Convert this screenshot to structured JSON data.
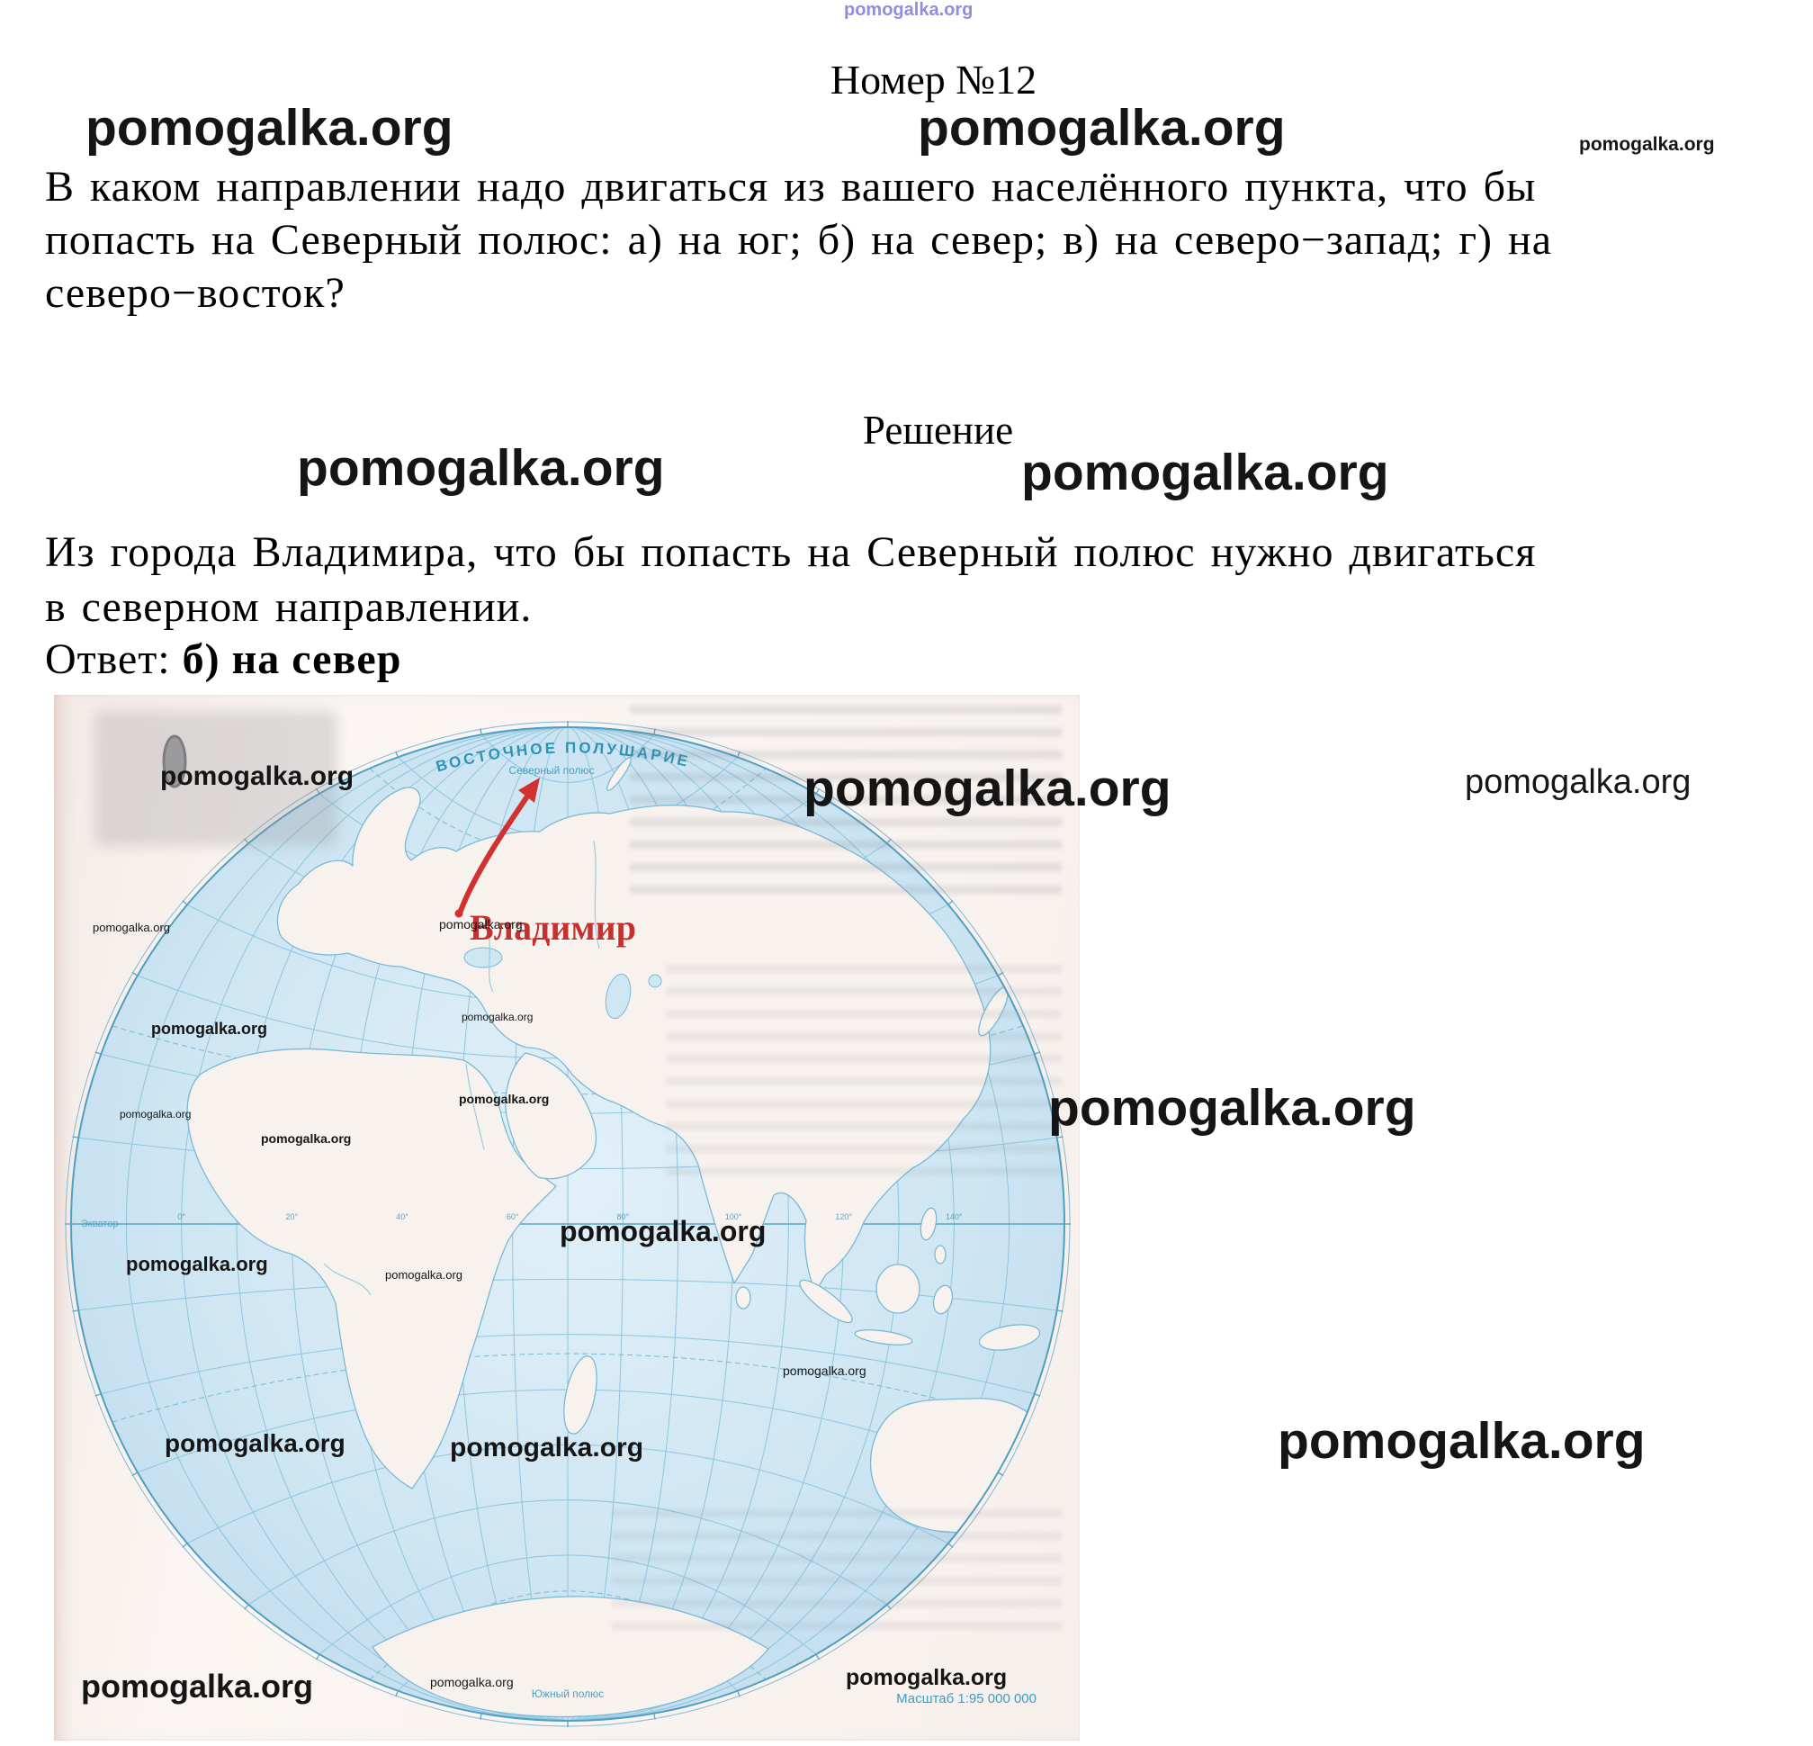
{
  "brand": "pomogalka.org",
  "doc": {
    "title": "Номер №12",
    "question_lines": [
      "В каком направлении надо двигаться из вашего населённого пункта, что бы",
      "попасть на Северный полюс: а) на юг; б) на север; в) на северо−запад; г) на",
      "северо−восток?"
    ],
    "solution_heading": "Решение",
    "solution_lines": [
      "Из города Владимира, что бы попасть на Северный полюс нужно двигаться",
      "в северном направлении."
    ],
    "answer_label": "Ответ:",
    "answer_value": "б) на север"
  },
  "map": {
    "title": "ВОСТОЧНОЕ ПОЛУШАРИЕ",
    "north_pole_label": "Северный полюс",
    "south_pole_label": "Южный полюс",
    "equator_label": "Экватор",
    "city_label": "Владимир",
    "scale_label": "Масштаб 1:95 000 000",
    "meridian_labels": [
      "0°",
      "20°",
      "40°",
      "60°",
      "80°",
      "100°",
      "120°",
      "140°"
    ],
    "colors": {
      "ocean": "#cfe6f3",
      "land": "#f8f2ee",
      "grid": "#8ec5de",
      "map_label_teal": "#2d93b6",
      "arrow_red": "#d32f2f",
      "watermark_purple": "#8b87dd"
    }
  }
}
